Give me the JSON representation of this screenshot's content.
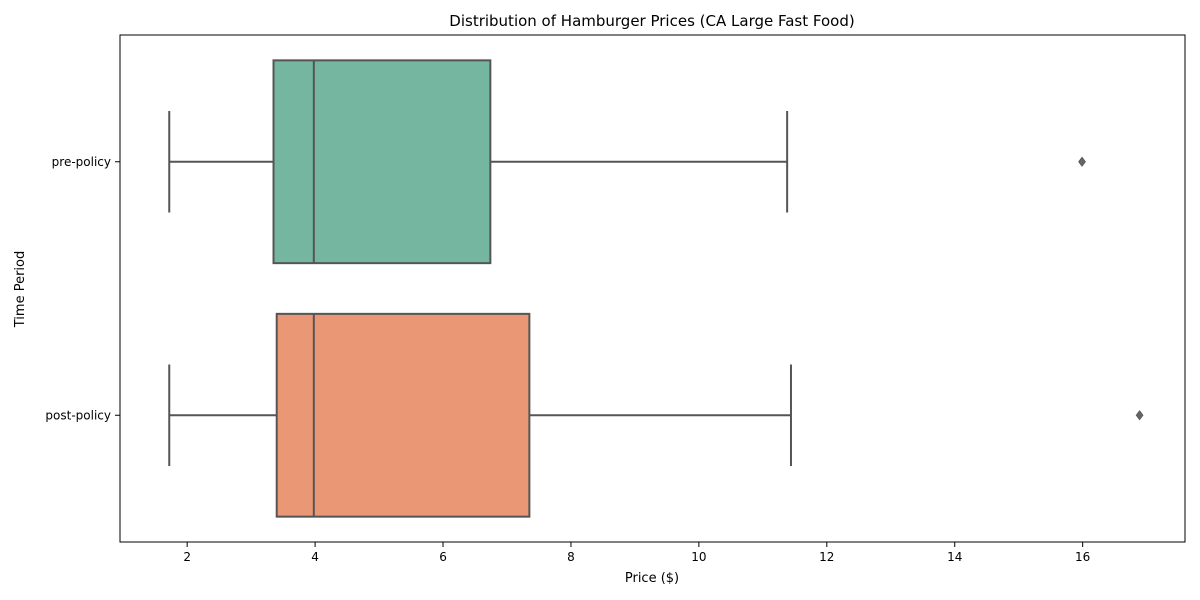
{
  "chart_data": {
    "type": "boxplot",
    "orientation": "horizontal",
    "title": "Distribution of Hamburger Prices (CA Large Fast Food)",
    "xlabel": "Price ($)",
    "ylabel": "Time Period",
    "xlim": [
      0.95,
      17.6
    ],
    "xticks": [
      2,
      4,
      6,
      8,
      10,
      12,
      14,
      16
    ],
    "categories": [
      "pre-policy",
      "post-policy"
    ],
    "series": [
      {
        "category": "pre-policy",
        "min": 1.72,
        "q1": 3.35,
        "median": 3.98,
        "q3": 6.74,
        "max": 11.38,
        "outliers": [
          15.99
        ],
        "color": "#74b6a0"
      },
      {
        "category": "post-policy",
        "min": 1.72,
        "q1": 3.4,
        "median": 3.98,
        "q3": 7.35,
        "max": 11.44,
        "outliers": [
          16.89
        ],
        "color": "#e99774"
      }
    ],
    "grid": false,
    "legend": "none"
  }
}
